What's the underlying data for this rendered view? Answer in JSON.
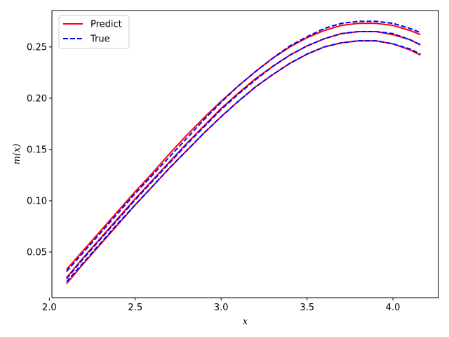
{
  "chart_data": {
    "type": "line",
    "title": "",
    "xlabel": "x",
    "ylabel": "m(x)",
    "xlim": [
      2.015,
      4.265
    ],
    "ylim": [
      0.0055,
      0.2855
    ],
    "xticks": [
      {
        "value": 2.0,
        "label": "2.0"
      },
      {
        "value": 2.5,
        "label": "2.5"
      },
      {
        "value": 3.0,
        "label": "3.0"
      },
      {
        "value": 3.5,
        "label": "3.5"
      },
      {
        "value": 4.0,
        "label": "4.0"
      }
    ],
    "yticks": [
      {
        "value": 0.05,
        "label": "0.05"
      },
      {
        "value": 0.1,
        "label": "0.10"
      },
      {
        "value": 0.15,
        "label": "0.15"
      },
      {
        "value": 0.2,
        "label": "0.20"
      },
      {
        "value": 0.25,
        "label": "0.25"
      }
    ],
    "grid": false,
    "legend": {
      "position": "top-left",
      "entries": [
        {
          "label": "Predict",
          "color": "#ff0000",
          "style": "solid"
        },
        {
          "label": "True",
          "color": "#0000ff",
          "style": "dashed"
        }
      ]
    },
    "x": [
      2.1,
      2.2,
      2.3,
      2.4,
      2.5,
      2.6,
      2.7,
      2.8,
      2.9,
      3.0,
      3.1,
      3.2,
      3.3,
      3.4,
      3.5,
      3.6,
      3.7,
      3.8,
      3.9,
      4.0,
      4.1,
      4.16
    ],
    "series": [
      {
        "group": "Predict",
        "color": "#ff0000",
        "style": "solid",
        "values": [
          0.033,
          0.052,
          0.071,
          0.09,
          0.109,
          0.127,
          0.146,
          0.164,
          0.181,
          0.197,
          0.212,
          0.226,
          0.239,
          0.25,
          0.259,
          0.266,
          0.271,
          0.273,
          0.273,
          0.271,
          0.266,
          0.262
        ]
      },
      {
        "group": "True",
        "color": "#0000ff",
        "style": "dashed",
        "values": [
          0.031,
          0.05,
          0.069,
          0.088,
          0.107,
          0.125,
          0.143,
          0.161,
          0.179,
          0.196,
          0.212,
          0.226,
          0.239,
          0.251,
          0.26,
          0.268,
          0.273,
          0.275,
          0.275,
          0.273,
          0.268,
          0.264
        ]
      },
      {
        "group": "Predict",
        "color": "#ff0000",
        "style": "solid",
        "values": [
          0.025,
          0.045,
          0.064,
          0.083,
          0.102,
          0.12,
          0.138,
          0.156,
          0.173,
          0.19,
          0.205,
          0.219,
          0.231,
          0.242,
          0.251,
          0.258,
          0.263,
          0.265,
          0.265,
          0.262,
          0.257,
          0.252
        ]
      },
      {
        "group": "True",
        "color": "#0000ff",
        "style": "dashed",
        "values": [
          0.024,
          0.044,
          0.063,
          0.082,
          0.101,
          0.119,
          0.137,
          0.155,
          0.172,
          0.189,
          0.204,
          0.218,
          0.231,
          0.242,
          0.251,
          0.258,
          0.263,
          0.265,
          0.265,
          0.263,
          0.257,
          0.252
        ]
      },
      {
        "group": "Predict",
        "color": "#ff0000",
        "style": "solid",
        "values": [
          0.019,
          0.039,
          0.058,
          0.077,
          0.096,
          0.114,
          0.132,
          0.149,
          0.166,
          0.182,
          0.197,
          0.211,
          0.223,
          0.234,
          0.243,
          0.25,
          0.254,
          0.256,
          0.256,
          0.253,
          0.247,
          0.242
        ]
      },
      {
        "group": "True",
        "color": "#0000ff",
        "style": "dashed",
        "values": [
          0.021,
          0.04,
          0.059,
          0.078,
          0.096,
          0.114,
          0.132,
          0.149,
          0.166,
          0.182,
          0.197,
          0.211,
          0.223,
          0.234,
          0.243,
          0.25,
          0.254,
          0.256,
          0.256,
          0.253,
          0.248,
          0.243
        ]
      }
    ]
  }
}
